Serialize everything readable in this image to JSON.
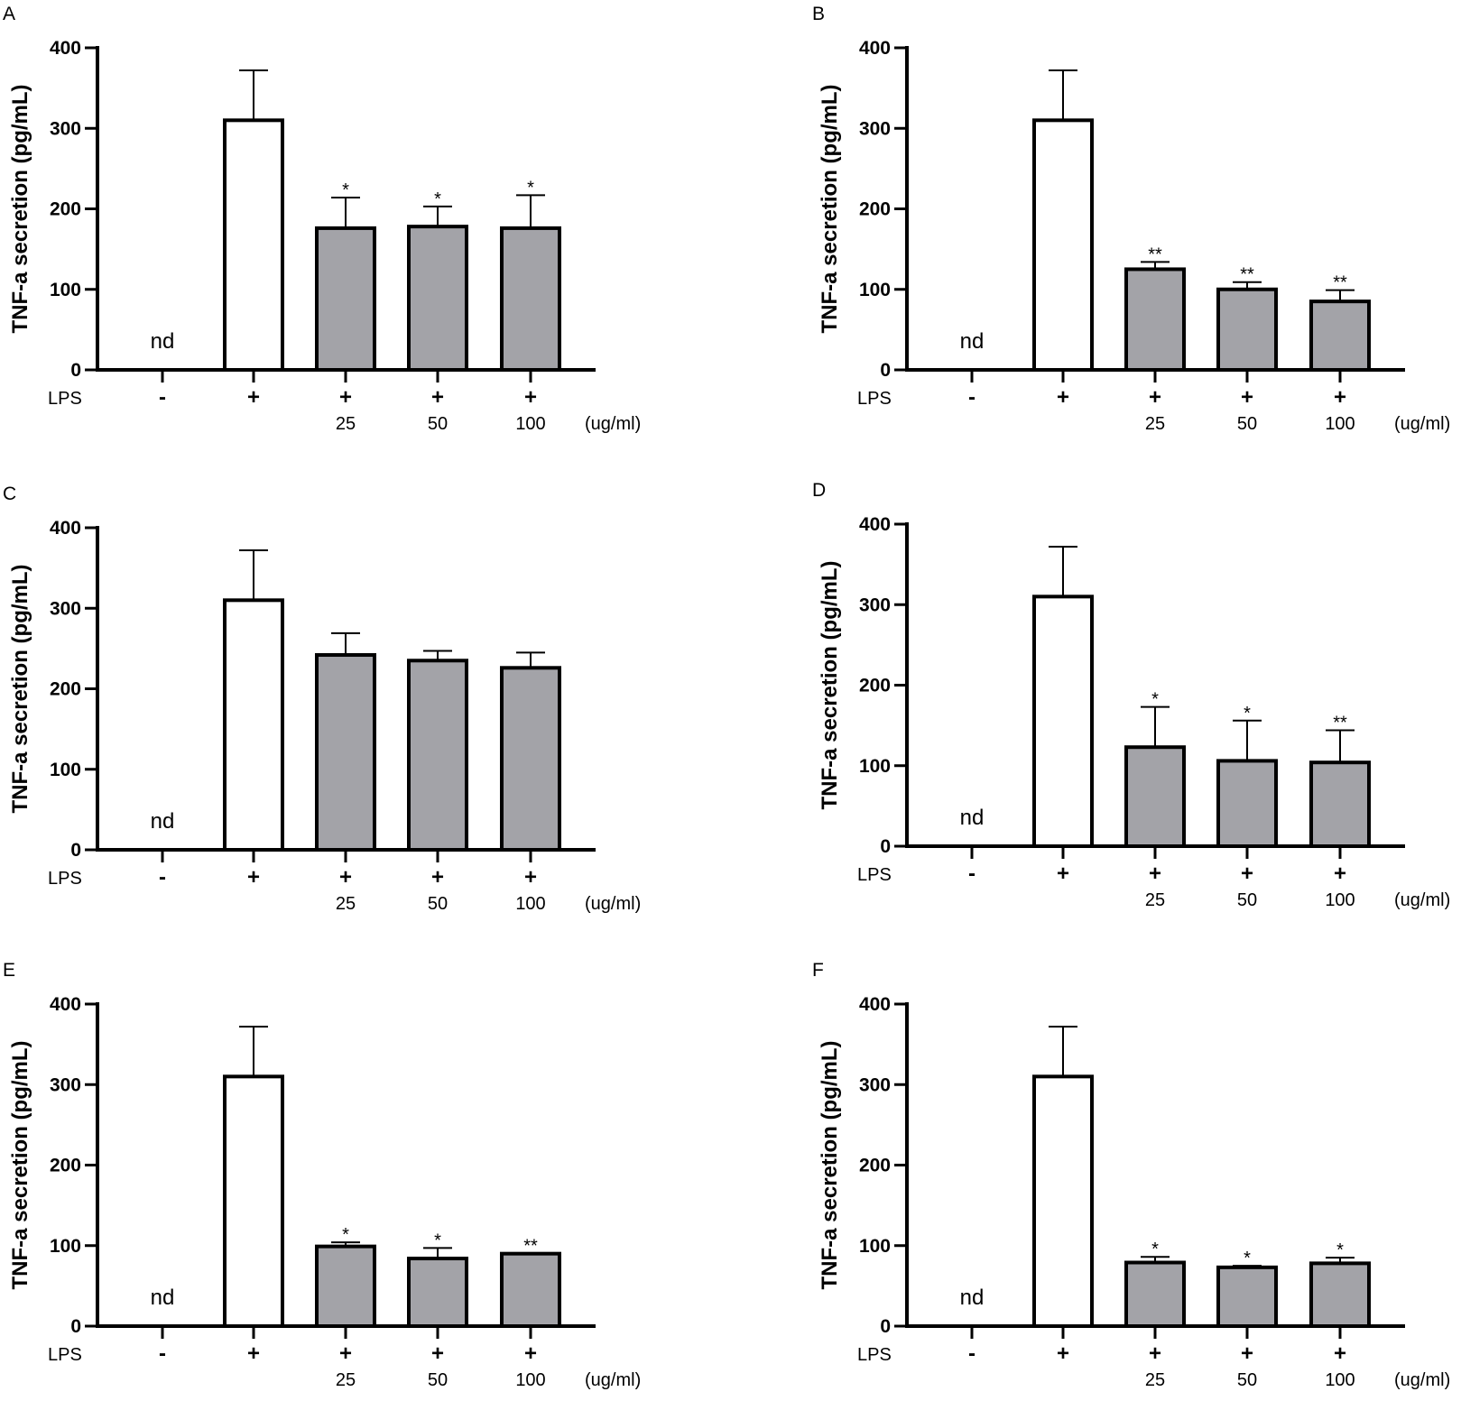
{
  "colors": {
    "lps_bar": "#ffffff",
    "treated_bar": "#a3a3a8",
    "stroke": "#000000"
  },
  "chart_data": [
    {
      "panel": "A",
      "type": "bar",
      "ylabel": "TNF-a secretion (pg/mL)",
      "ylim": [
        0,
        400
      ],
      "yticks": [
        "0",
        "100",
        "200",
        "300",
        "400"
      ],
      "row_label": "LPS",
      "lps": [
        "-",
        "+",
        "+",
        "+",
        "+"
      ],
      "concentrations": [
        "",
        "",
        "25",
        "50",
        "100"
      ],
      "unit": "(ug/ml)",
      "values": [
        0,
        310,
        176,
        178,
        176
      ],
      "errors": [
        0,
        62,
        38,
        25,
        41
      ],
      "annotations": [
        "nd",
        "",
        "*",
        "*",
        "*"
      ]
    },
    {
      "panel": "B",
      "type": "bar",
      "ylabel": "TNF-a secretion (pg/mL)",
      "ylim": [
        0,
        400
      ],
      "yticks": [
        "0",
        "100",
        "200",
        "300",
        "400"
      ],
      "row_label": "LPS",
      "lps": [
        "-",
        "+",
        "+",
        "+",
        "+"
      ],
      "concentrations": [
        "",
        "",
        "25",
        "50",
        "100"
      ],
      "unit": "(ug/ml)",
      "values": [
        0,
        310,
        125,
        100,
        85
      ],
      "errors": [
        0,
        62,
        9,
        9,
        14
      ],
      "annotations": [
        "nd",
        "",
        "**",
        "**",
        "**"
      ]
    },
    {
      "panel": "C",
      "type": "bar",
      "ylabel": "TNF-a secretion (pg/mL)",
      "ylim": [
        0,
        400
      ],
      "yticks": [
        "0",
        "100",
        "200",
        "300",
        "400"
      ],
      "row_label": "LPS",
      "lps": [
        "-",
        "+",
        "+",
        "+",
        "+"
      ],
      "concentrations": [
        "",
        "",
        "25",
        "50",
        "100"
      ],
      "unit": "(ug/ml)",
      "values": [
        0,
        310,
        242,
        235,
        226
      ],
      "errors": [
        0,
        62,
        27,
        12,
        19
      ],
      "annotations": [
        "nd",
        "",
        "",
        "",
        ""
      ]
    },
    {
      "panel": "D",
      "type": "bar",
      "ylabel": "TNF-a secretion (pg/mL)",
      "ylim": [
        0,
        400
      ],
      "yticks": [
        "0",
        "100",
        "200",
        "300",
        "400"
      ],
      "row_label": "LPS",
      "lps": [
        "-",
        "+",
        "+",
        "+",
        "+"
      ],
      "concentrations": [
        "",
        "",
        "25",
        "50",
        "100"
      ],
      "unit": "(ug/ml)",
      "values": [
        0,
        310,
        123,
        106,
        104
      ],
      "errors": [
        0,
        62,
        50,
        50,
        40
      ],
      "annotations": [
        "nd",
        "",
        "*",
        "*",
        "**"
      ]
    },
    {
      "panel": "E",
      "type": "bar",
      "ylabel": "TNF-a secretion (pg/mL)",
      "ylim": [
        0,
        400
      ],
      "yticks": [
        "0",
        "100",
        "200",
        "300",
        "400"
      ],
      "row_label": "LPS",
      "lps": [
        "-",
        "+",
        "+",
        "+",
        "+"
      ],
      "concentrations": [
        "",
        "",
        "25",
        "50",
        "100"
      ],
      "unit": "(ug/ml)",
      "values": [
        0,
        310,
        99,
        84,
        90
      ],
      "errors": [
        0,
        62,
        5,
        13,
        0
      ],
      "annotations": [
        "nd",
        "",
        "*",
        "*",
        "**"
      ]
    },
    {
      "panel": "F",
      "type": "bar",
      "ylabel": "TNF-a secretion (pg/mL)",
      "ylim": [
        0,
        400
      ],
      "yticks": [
        "0",
        "100",
        "200",
        "300",
        "400"
      ],
      "row_label": "LPS",
      "lps": [
        "-",
        "+",
        "+",
        "+",
        "+"
      ],
      "concentrations": [
        "",
        "",
        "25",
        "50",
        "100"
      ],
      "unit": "(ug/ml)",
      "values": [
        0,
        310,
        79,
        73,
        78
      ],
      "errors": [
        0,
        62,
        7,
        2,
        7
      ],
      "annotations": [
        "nd",
        "",
        "*",
        "*",
        "*"
      ]
    }
  ]
}
